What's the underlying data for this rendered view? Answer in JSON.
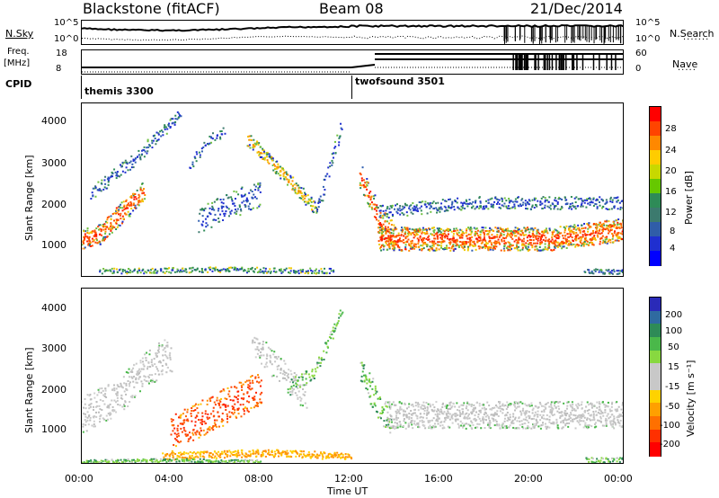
{
  "header": {
    "station": "Blackstone (fitACF)",
    "beam": "Beam 08",
    "date": "21/Dec/2014"
  },
  "top_panels": {
    "nsky_label": "N.Sky",
    "nsky_ticks": [
      "10^5",
      "10^0"
    ],
    "nsearch_label": "N.Search",
    "nsearch_ticks": [
      "10^5",
      "10^0"
    ],
    "freq_label": "Freq.",
    "freq_unit": "[MHz]",
    "freq_ticks": [
      "18",
      "8"
    ],
    "nave_label": "Nave",
    "nave_ticks": [
      "60",
      "0"
    ],
    "cpid_label": "CPID",
    "cpid_modes": [
      {
        "name": "themis 3300",
        "start_hour": 0
      },
      {
        "name": "twofsound 3501",
        "start_hour": 12
      }
    ]
  },
  "chart_data": [
    {
      "type": "heatmap",
      "name": "power",
      "ylabel": "Slant Range [km]",
      "y_ticks": [
        "4000",
        "3000",
        "2000",
        "1000"
      ],
      "ylim": [
        180,
        4500
      ],
      "xlim": [
        0,
        24
      ],
      "colorbar": {
        "label": "Power [dB]",
        "tick_labels": [
          "28",
          "24",
          "20",
          "16",
          "12",
          "8",
          "4"
        ],
        "colors": [
          "#ff0000",
          "#ff4400",
          "#ff8800",
          "#ffcc00",
          "#c8d800",
          "#66c800",
          "#2e8b57",
          "#3c7a6e",
          "#305da8",
          "#1f2fd0",
          "#0000ff"
        ]
      }
    },
    {
      "type": "heatmap",
      "name": "velocity",
      "ylabel": "Slant Range [km]",
      "y_ticks": [
        "4000",
        "3000",
        "2000",
        "1000"
      ],
      "ylim": [
        180,
        4500
      ],
      "xlim": [
        0,
        24
      ],
      "colorbar": {
        "label": "Velocity [m s⁻¹]",
        "tick_labels": [
          "200",
          "100",
          "50",
          "15",
          "-15",
          "-50",
          "-100",
          "-200"
        ],
        "colors": [
          "#2a2ab8",
          "#2f6aa0",
          "#2e8b57",
          "#4ab84a",
          "#88d840",
          "#c8c8c8",
          "#c8c8c8",
          "#ffd200",
          "#ffa000",
          "#ff7000",
          "#ff3000",
          "#ff0000"
        ]
      }
    }
  ],
  "xaxis": {
    "tick_labels": [
      "00:00",
      "04:00",
      "08:00",
      "12:00",
      "16:00",
      "20:00",
      "00:00"
    ],
    "label": "Time UT"
  }
}
